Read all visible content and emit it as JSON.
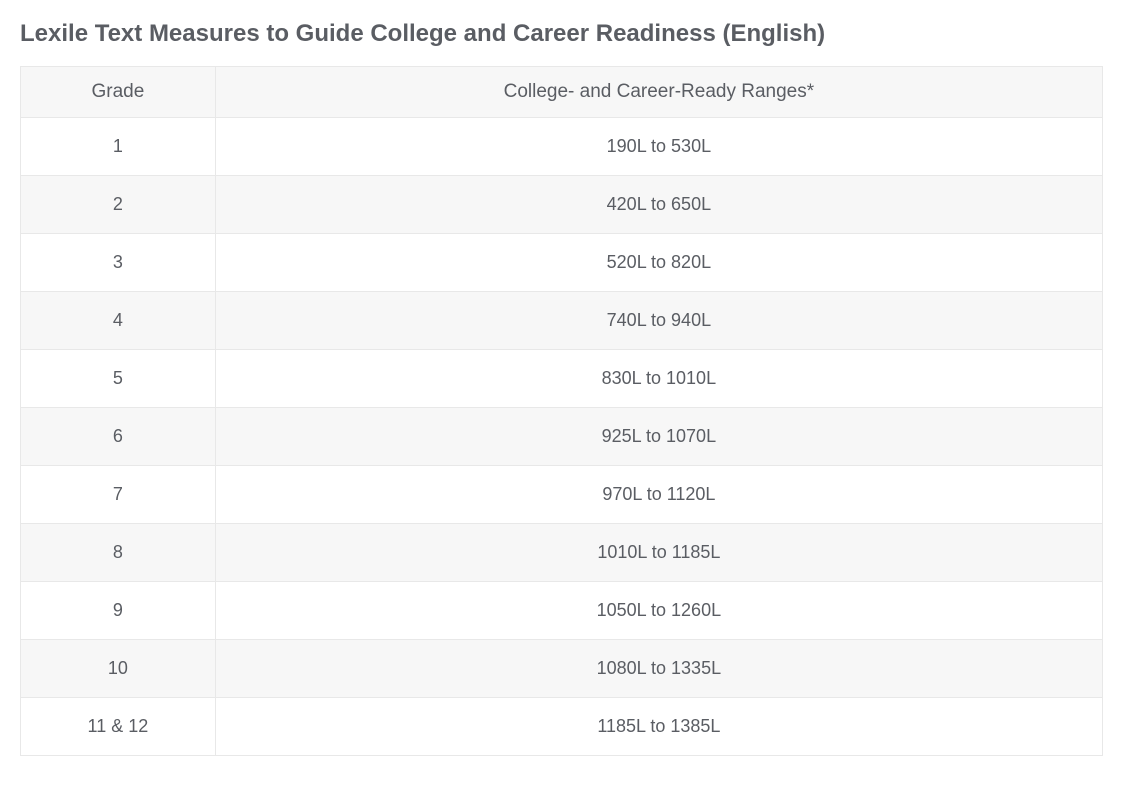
{
  "title": "Lexile Text Measures to Guide College and Career Readiness (English)",
  "table": {
    "columns": [
      {
        "label": "Grade",
        "width_pct": 18
      },
      {
        "label": "College- and Career-Ready Ranges*",
        "width_pct": 82
      }
    ],
    "rows": [
      {
        "grade": "1",
        "range": "190L to 530L"
      },
      {
        "grade": "2",
        "range": "420L to 650L"
      },
      {
        "grade": "3",
        "range": "520L to 820L"
      },
      {
        "grade": "4",
        "range": "740L to 940L"
      },
      {
        "grade": "5",
        "range": "830L to 1010L"
      },
      {
        "grade": "6",
        "range": "925L to 1070L"
      },
      {
        "grade": "7",
        "range": "970L to 1120L"
      },
      {
        "grade": "8",
        "range": "1010L to 1185L"
      },
      {
        "grade": "9",
        "range": "1050L to 1260L"
      },
      {
        "grade": "10",
        "range": "1080L to 1335L"
      },
      {
        "grade": "11 & 12",
        "range": "1185L to 1385L"
      }
    ],
    "header_bg": "#f7f7f7",
    "row_odd_bg": "#ffffff",
    "row_even_bg": "#f7f7f7",
    "border_color": "#e8e8e8",
    "text_color": "#5a5d63",
    "title_fontsize": 24,
    "header_fontsize": 19,
    "cell_fontsize": 18
  }
}
